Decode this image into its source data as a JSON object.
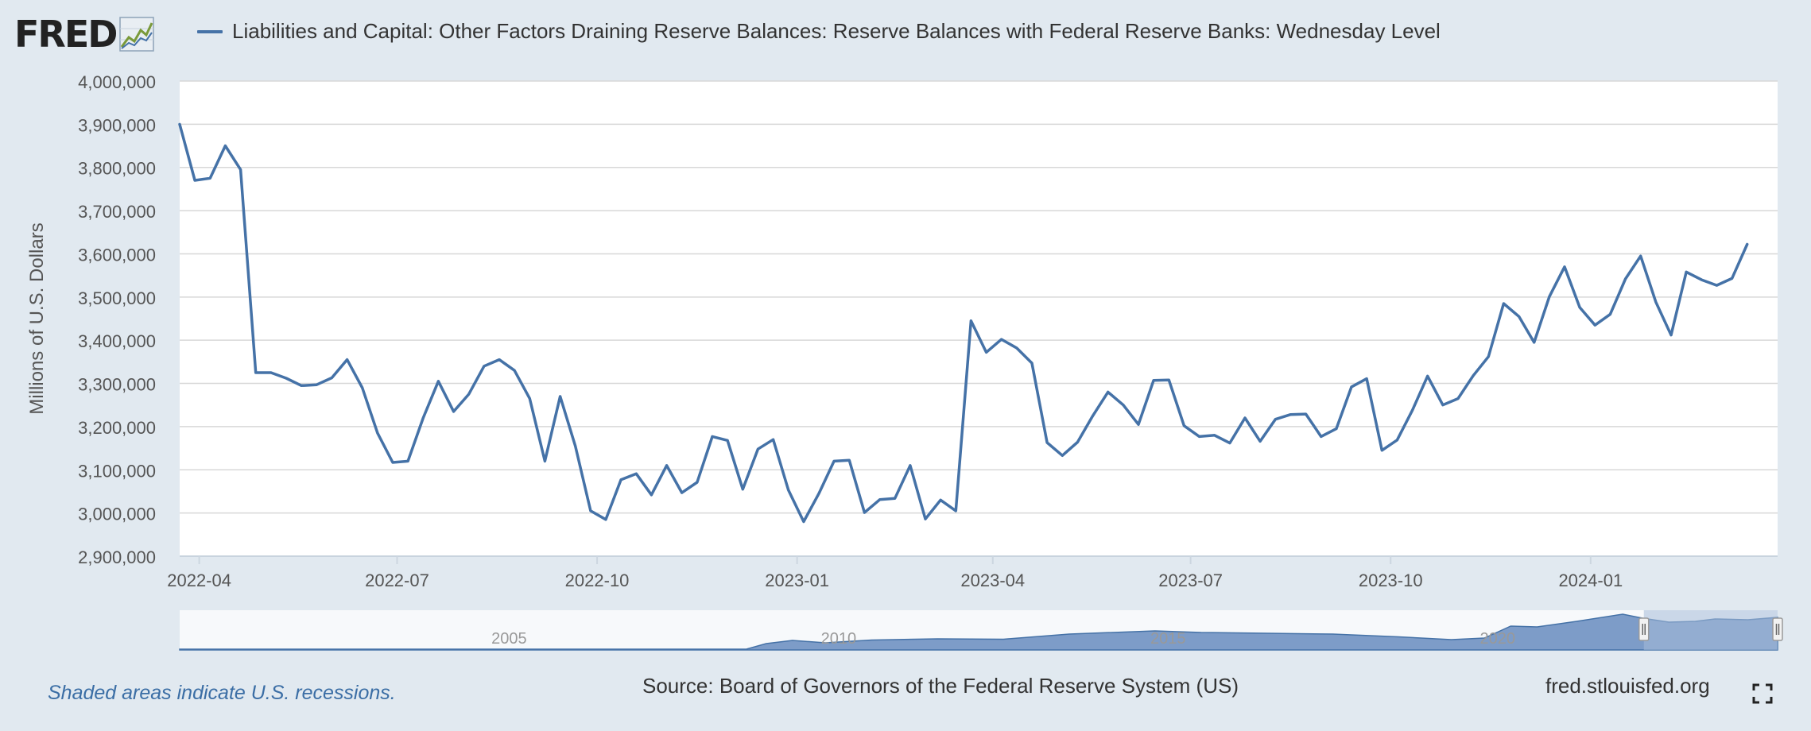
{
  "header": {
    "logo_text": "FRED",
    "logo_icon": "line-chart-icon",
    "series_title": "Liabilities and Capital: Other Factors Draining Reserve Balances: Reserve Balances with Federal Reserve Banks: Wednesday Level",
    "series_color": "#4572a7"
  },
  "colors": {
    "background": "#e1e9f0",
    "plot_background": "#ffffff",
    "grid": "#d8d8d8",
    "line": "#4572a7",
    "navigator_fill": "#7d9cc8",
    "navigator_mask": "#a6bcd9"
  },
  "chart_data": {
    "type": "line",
    "ylabel": "Millions of U.S. Dollars",
    "ylim": [
      2900000,
      4000000
    ],
    "xlim": [
      "2022-03-23",
      "2024-03-27"
    ],
    "yticks": [
      "4,000,000",
      "3,900,000",
      "3,800,000",
      "3,700,000",
      "3,600,000",
      "3,500,000",
      "3,400,000",
      "3,300,000",
      "3,200,000",
      "3,100,000",
      "3,000,000",
      "2,900,000"
    ],
    "yticks_values": [
      4000000,
      3900000,
      3800000,
      3700000,
      3600000,
      3500000,
      3400000,
      3300000,
      3200000,
      3100000,
      3000000,
      2900000
    ],
    "xticks": [
      {
        "label": "2022-04",
        "date": "2022-04-01"
      },
      {
        "label": "2022-07",
        "date": "2022-07-01"
      },
      {
        "label": "2022-10",
        "date": "2022-10-01"
      },
      {
        "label": "2023-01",
        "date": "2023-01-01"
      },
      {
        "label": "2023-04",
        "date": "2023-04-01"
      },
      {
        "label": "2023-07",
        "date": "2023-07-01"
      },
      {
        "label": "2023-10",
        "date": "2023-10-01"
      },
      {
        "label": "2024-01",
        "date": "2024-01-01"
      }
    ],
    "grid": true,
    "legend": "top-left",
    "series": [
      {
        "name": "Liabilities and Capital: Other Factors Draining Reserve Balances: Reserve Balances with Federal Reserve Banks: Wednesday Level",
        "color": "#4572a7",
        "x": [
          "2022-03-23",
          "2022-03-30",
          "2022-04-06",
          "2022-04-13",
          "2022-04-20",
          "2022-04-27",
          "2022-05-04",
          "2022-05-11",
          "2022-05-18",
          "2022-05-25",
          "2022-06-01",
          "2022-06-08",
          "2022-06-15",
          "2022-06-22",
          "2022-06-29",
          "2022-07-06",
          "2022-07-13",
          "2022-07-20",
          "2022-07-27",
          "2022-08-03",
          "2022-08-10",
          "2022-08-17",
          "2022-08-24",
          "2022-08-31",
          "2022-09-07",
          "2022-09-14",
          "2022-09-21",
          "2022-09-28",
          "2022-10-05",
          "2022-10-12",
          "2022-10-19",
          "2022-10-26",
          "2022-11-02",
          "2022-11-09",
          "2022-11-16",
          "2022-11-23",
          "2022-11-30",
          "2022-12-07",
          "2022-12-14",
          "2022-12-21",
          "2022-12-28",
          "2023-01-04",
          "2023-01-11",
          "2023-01-18",
          "2023-01-25",
          "2023-02-01",
          "2023-02-08",
          "2023-02-15",
          "2023-02-22",
          "2023-03-01",
          "2023-03-08",
          "2023-03-15",
          "2023-03-22",
          "2023-03-29",
          "2023-04-05",
          "2023-04-12",
          "2023-04-19",
          "2023-04-26",
          "2023-05-03",
          "2023-05-10",
          "2023-05-17",
          "2023-05-24",
          "2023-05-31",
          "2023-06-07",
          "2023-06-14",
          "2023-06-21",
          "2023-06-28",
          "2023-07-05",
          "2023-07-12",
          "2023-07-19",
          "2023-07-26",
          "2023-08-02",
          "2023-08-09",
          "2023-08-16",
          "2023-08-23",
          "2023-08-30",
          "2023-09-06",
          "2023-09-13",
          "2023-09-20",
          "2023-09-27",
          "2023-10-04",
          "2023-10-11",
          "2023-10-18",
          "2023-10-25",
          "2023-11-01",
          "2023-11-08",
          "2023-11-15",
          "2023-11-22",
          "2023-11-29",
          "2023-12-06",
          "2023-12-13",
          "2023-12-20",
          "2023-12-27",
          "2024-01-03",
          "2024-01-10",
          "2024-01-17",
          "2024-01-24",
          "2024-01-31",
          "2024-02-07",
          "2024-02-14",
          "2024-02-21",
          "2024-02-28",
          "2024-03-06",
          "2024-03-13"
        ],
        "y": [
          3900000,
          3770000,
          3775000,
          3850000,
          3795000,
          3325000,
          3325000,
          3312000,
          3295000,
          3297000,
          3313000,
          3355000,
          3290000,
          3185000,
          3117000,
          3120000,
          3220000,
          3305000,
          3235000,
          3275000,
          3340000,
          3355000,
          3330000,
          3265000,
          3120000,
          3270000,
          3155000,
          3005000,
          2985000,
          3077000,
          3091000,
          3042000,
          3110000,
          3047000,
          3071000,
          3177000,
          3168000,
          3055000,
          3148000,
          3170000,
          3053000,
          2980000,
          3045000,
          3120000,
          3122000,
          3001000,
          3031000,
          3034000,
          3110000,
          2986000,
          3030000,
          3005000,
          3445000,
          3372000,
          3402000,
          3382000,
          3347000,
          3163000,
          3133000,
          3164000,
          3225000,
          3280000,
          3250000,
          3205000,
          3307000,
          3308000,
          3202000,
          3177000,
          3180000,
          3162000,
          3220000,
          3166000,
          3217000,
          3228000,
          3229000,
          3177000,
          3195000,
          3292000,
          3311000,
          3145000,
          3169000,
          3238000,
          3317000,
          3250000,
          3265000,
          3318000,
          3362000,
          3485000,
          3455000,
          3395000,
          3501000,
          3570000,
          3476000,
          3435000,
          3460000,
          3542000,
          3595000,
          3488000,
          3412000,
          3558000,
          3540000,
          3527000,
          3543000,
          3622000
        ]
      }
    ]
  },
  "navigator": {
    "labels": [
      "2005",
      "2010",
      "2015",
      "2020"
    ]
  },
  "footer": {
    "recession_note": "Shaded areas indicate U.S. recessions.",
    "source": "Source: Board of Governors of the Federal Reserve System (US)",
    "url": "fred.stlouisfed.org",
    "fullscreen_icon": "fullscreen-icon"
  }
}
